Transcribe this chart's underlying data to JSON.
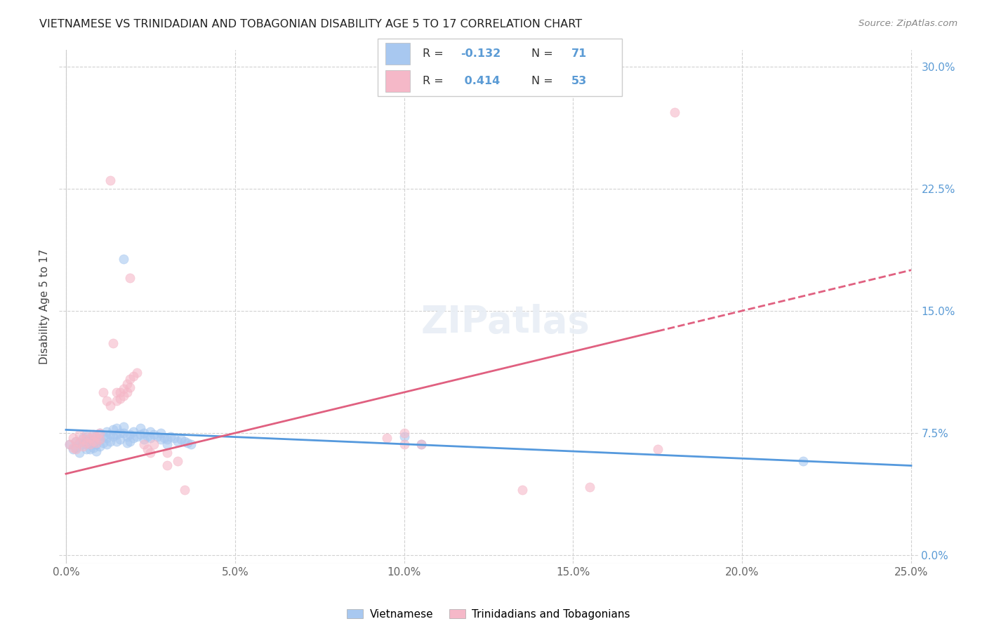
{
  "title": "VIETNAMESE VS TRINIDADIAN AND TOBAGONIAN DISABILITY AGE 5 TO 17 CORRELATION CHART",
  "source": "Source: ZipAtlas.com",
  "xlim": [
    0.0,
    0.25
  ],
  "ylim": [
    -0.005,
    0.31
  ],
  "ylabel": "Disability Age 5 to 17",
  "legend_labels": [
    "Vietnamese",
    "Trinidadians and Tobagonians"
  ],
  "blue_color": "#a8c8f0",
  "pink_color": "#f5b8c8",
  "trend_blue": "#5599dd",
  "trend_pink": "#e06080",
  "blue_scatter": [
    [
      0.001,
      0.068
    ],
    [
      0.002,
      0.065
    ],
    [
      0.003,
      0.066
    ],
    [
      0.003,
      0.07
    ],
    [
      0.004,
      0.069
    ],
    [
      0.004,
      0.063
    ],
    [
      0.005,
      0.072
    ],
    [
      0.005,
      0.068
    ],
    [
      0.006,
      0.074
    ],
    [
      0.006,
      0.07
    ],
    [
      0.006,
      0.065
    ],
    [
      0.007,
      0.071
    ],
    [
      0.007,
      0.068
    ],
    [
      0.007,
      0.065
    ],
    [
      0.008,
      0.073
    ],
    [
      0.008,
      0.069
    ],
    [
      0.008,
      0.066
    ],
    [
      0.009,
      0.072
    ],
    [
      0.009,
      0.068
    ],
    [
      0.009,
      0.064
    ],
    [
      0.01,
      0.075
    ],
    [
      0.01,
      0.071
    ],
    [
      0.01,
      0.067
    ],
    [
      0.011,
      0.073
    ],
    [
      0.011,
      0.069
    ],
    [
      0.012,
      0.076
    ],
    [
      0.012,
      0.072
    ],
    [
      0.012,
      0.068
    ],
    [
      0.013,
      0.074
    ],
    [
      0.013,
      0.07
    ],
    [
      0.014,
      0.077
    ],
    [
      0.014,
      0.073
    ],
    [
      0.015,
      0.078
    ],
    [
      0.015,
      0.074
    ],
    [
      0.015,
      0.07
    ],
    [
      0.016,
      0.075
    ],
    [
      0.016,
      0.071
    ],
    [
      0.017,
      0.079
    ],
    [
      0.017,
      0.075
    ],
    [
      0.018,
      0.073
    ],
    [
      0.018,
      0.069
    ],
    [
      0.019,
      0.074
    ],
    [
      0.019,
      0.07
    ],
    [
      0.02,
      0.076
    ],
    [
      0.02,
      0.072
    ],
    [
      0.021,
      0.073
    ],
    [
      0.022,
      0.078
    ],
    [
      0.022,
      0.074
    ],
    [
      0.023,
      0.075
    ],
    [
      0.023,
      0.071
    ],
    [
      0.024,
      0.073
    ],
    [
      0.025,
      0.076
    ],
    [
      0.025,
      0.072
    ],
    [
      0.026,
      0.074
    ],
    [
      0.027,
      0.073
    ],
    [
      0.028,
      0.075
    ],
    [
      0.028,
      0.071
    ],
    [
      0.029,
      0.072
    ],
    [
      0.03,
      0.071
    ],
    [
      0.03,
      0.068
    ],
    [
      0.031,
      0.073
    ],
    [
      0.032,
      0.072
    ],
    [
      0.033,
      0.07
    ],
    [
      0.034,
      0.071
    ],
    [
      0.035,
      0.07
    ],
    [
      0.036,
      0.069
    ],
    [
      0.037,
      0.068
    ],
    [
      0.017,
      0.182
    ],
    [
      0.1,
      0.073
    ],
    [
      0.105,
      0.068
    ],
    [
      0.218,
      0.058
    ]
  ],
  "pink_scatter": [
    [
      0.001,
      0.068
    ],
    [
      0.002,
      0.072
    ],
    [
      0.002,
      0.066
    ],
    [
      0.003,
      0.07
    ],
    [
      0.003,
      0.065
    ],
    [
      0.004,
      0.074
    ],
    [
      0.004,
      0.069
    ],
    [
      0.005,
      0.071
    ],
    [
      0.005,
      0.067
    ],
    [
      0.006,
      0.073
    ],
    [
      0.006,
      0.069
    ],
    [
      0.007,
      0.072
    ],
    [
      0.007,
      0.068
    ],
    [
      0.008,
      0.074
    ],
    [
      0.008,
      0.07
    ],
    [
      0.009,
      0.073
    ],
    [
      0.009,
      0.069
    ],
    [
      0.01,
      0.075
    ],
    [
      0.01,
      0.071
    ],
    [
      0.011,
      0.1
    ],
    [
      0.012,
      0.095
    ],
    [
      0.013,
      0.092
    ],
    [
      0.014,
      0.13
    ],
    [
      0.015,
      0.1
    ],
    [
      0.015,
      0.095
    ],
    [
      0.016,
      0.1
    ],
    [
      0.016,
      0.096
    ],
    [
      0.017,
      0.102
    ],
    [
      0.017,
      0.098
    ],
    [
      0.018,
      0.105
    ],
    [
      0.018,
      0.1
    ],
    [
      0.019,
      0.108
    ],
    [
      0.019,
      0.103
    ],
    [
      0.02,
      0.11
    ],
    [
      0.021,
      0.112
    ],
    [
      0.023,
      0.068
    ],
    [
      0.024,
      0.065
    ],
    [
      0.025,
      0.063
    ],
    [
      0.026,
      0.068
    ],
    [
      0.03,
      0.063
    ],
    [
      0.03,
      0.055
    ],
    [
      0.033,
      0.058
    ],
    [
      0.035,
      0.04
    ],
    [
      0.1,
      0.075
    ],
    [
      0.1,
      0.068
    ],
    [
      0.105,
      0.068
    ],
    [
      0.135,
      0.04
    ],
    [
      0.155,
      0.042
    ],
    [
      0.175,
      0.065
    ],
    [
      0.013,
      0.23
    ],
    [
      0.019,
      0.17
    ],
    [
      0.095,
      0.072
    ],
    [
      0.18,
      0.272
    ]
  ]
}
